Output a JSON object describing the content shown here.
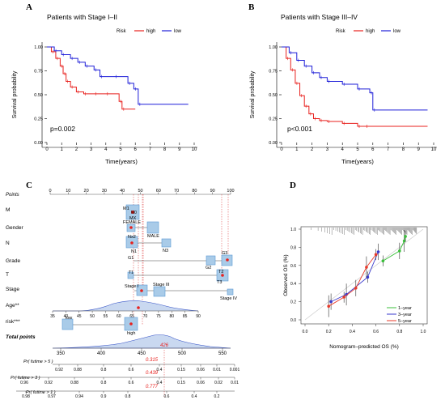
{
  "panels": {
    "A": {
      "letter": "A",
      "title": "Patients with Stage I–II",
      "legend_label": "Risk",
      "legend_items": [
        "high",
        "low"
      ],
      "pvalue": "p=0.002",
      "xlabel": "Time(years)",
      "ylabel": "Survival probability"
    },
    "B": {
      "letter": "B",
      "title": "Patients with Stage III–IV",
      "legend_label": "Risk",
      "legend_items": [
        "high",
        "low"
      ],
      "pvalue": "p<0.001",
      "xlabel": "Time(years)",
      "ylabel": "Survival probability"
    },
    "C": {
      "letter": "C",
      "rows": [
        "Points",
        "M",
        "Gender",
        "N",
        "Grade",
        "T",
        "Stage",
        "Age**",
        "risk***",
        "Total points",
        "Pr( futime > 5 )",
        "Pr( futime > 3 )",
        "Pr( futime > 1 )"
      ],
      "factor_labels": {
        "M": [
          "M1",
          "MX",
          "M0"
        ],
        "Gender": [
          "FEMALE",
          "MALE"
        ],
        "N": [
          "Nx2",
          "N1",
          "N3"
        ],
        "Grade": [
          "G1",
          "G2",
          "G3"
        ],
        "T": [
          "T1",
          "T2",
          "T3"
        ],
        "Stage": [
          "Stage I",
          "Stage III",
          "Stage IV"
        ],
        "risk": [
          "low",
          "high"
        ]
      },
      "total_points_value": "426",
      "prob_values": [
        "0.315",
        "0.439",
        "0.777"
      ]
    },
    "D": {
      "letter": "D",
      "xlabel": "Nomogram–predicted OS (%)",
      "ylabel": "Observed OS (%)",
      "legend": [
        "1–year",
        "3–year",
        "5–year"
      ]
    }
  },
  "colors": {
    "high": "#e8211e",
    "low": "#1f1fd8",
    "oneyr": "#3bbf3b",
    "threeyr": "#3a3acd",
    "fiveyr": "#e83a2a",
    "box": "#5b9bd5"
  },
  "chart_data": [
    {
      "type": "line",
      "panel": "A",
      "title": "Patients with Stage I–II",
      "xlabel": "Time(years)",
      "ylabel": "Survival probability",
      "xlim": [
        0,
        10
      ],
      "ylim": [
        0,
        1
      ],
      "xticks": [
        0,
        1,
        2,
        3,
        4,
        5,
        6,
        7,
        8,
        9,
        10
      ],
      "yticks": [
        0.0,
        0.25,
        0.5,
        0.75,
        1.0
      ],
      "series": [
        {
          "name": "high",
          "x": [
            0,
            0.3,
            0.6,
            0.9,
            1.1,
            1.3,
            1.6,
            2.0,
            2.5,
            3.2,
            4.0,
            4.9,
            5.1,
            6.0
          ],
          "y": [
            1.0,
            0.95,
            0.88,
            0.8,
            0.72,
            0.64,
            0.58,
            0.53,
            0.51,
            0.51,
            0.51,
            0.43,
            0.35,
            0.35
          ]
        },
        {
          "name": "low",
          "x": [
            0,
            0.5,
            1.0,
            1.6,
            2.1,
            2.6,
            3.2,
            3.6,
            4.6,
            5.5,
            5.9,
            6.2,
            9.6
          ],
          "y": [
            1.0,
            0.96,
            0.92,
            0.88,
            0.84,
            0.8,
            0.76,
            0.69,
            0.69,
            0.62,
            0.56,
            0.4,
            0.4
          ]
        }
      ],
      "annotation": "p=0.002"
    },
    {
      "type": "line",
      "panel": "B",
      "title": "Patients with Stage III–IV",
      "xlabel": "Time(years)",
      "ylabel": "Survival probability",
      "xlim": [
        0,
        10
      ],
      "ylim": [
        0,
        1
      ],
      "xticks": [
        0,
        1,
        2,
        3,
        4,
        5,
        6,
        7,
        8,
        9,
        10
      ],
      "yticks": [
        0.0,
        0.25,
        0.5,
        0.75,
        1.0
      ],
      "series": [
        {
          "name": "high",
          "x": [
            0,
            0.3,
            0.6,
            0.9,
            1.2,
            1.5,
            1.8,
            2.1,
            2.5,
            3.0,
            4.0,
            5.0,
            5.5,
            9.6
          ],
          "y": [
            1.0,
            0.88,
            0.76,
            0.62,
            0.49,
            0.38,
            0.3,
            0.25,
            0.23,
            0.22,
            0.2,
            0.17,
            0.17,
            0.17
          ]
        },
        {
          "name": "low",
          "x": [
            0,
            0.5,
            1.0,
            1.5,
            2.0,
            2.5,
            3.0,
            4.0,
            5.0,
            5.8,
            6.0,
            9.6
          ],
          "y": [
            1.0,
            0.94,
            0.86,
            0.8,
            0.73,
            0.68,
            0.64,
            0.61,
            0.56,
            0.52,
            0.34,
            0.34
          ]
        }
      ],
      "annotation": "p<0.001"
    },
    {
      "type": "line",
      "panel": "D",
      "xlabel": "Nomogram–predicted OS (%)",
      "ylabel": "Observed OS (%)",
      "xlim": [
        0,
        1
      ],
      "ylim": [
        0,
        1
      ],
      "xticks": [
        0.0,
        0.2,
        0.4,
        0.6,
        0.8,
        1.0
      ],
      "yticks": [
        0.0,
        0.2,
        0.4,
        0.6,
        0.8,
        1.0
      ],
      "series": [
        {
          "name": "1–year",
          "x": [
            0.66,
            0.8,
            0.84,
            0.85
          ],
          "y": [
            0.65,
            0.76,
            0.87,
            0.92
          ]
        },
        {
          "name": "3–year",
          "x": [
            0.22,
            0.35,
            0.53,
            0.62
          ],
          "y": [
            0.2,
            0.28,
            0.47,
            0.75
          ]
        },
        {
          "name": "5–year",
          "x": [
            0.2,
            0.33,
            0.43,
            0.52,
            0.6
          ],
          "y": [
            0.15,
            0.25,
            0.35,
            0.58,
            0.72
          ]
        }
      ]
    }
  ]
}
